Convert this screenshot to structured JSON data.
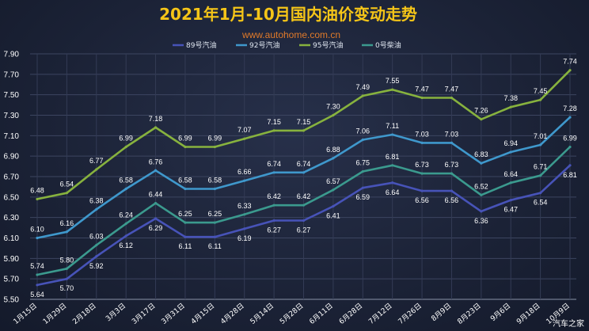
{
  "chart_data": {
    "type": "line",
    "title": "2021年1月-10月国内油价变动走势",
    "subtitle": "www.autohome.com.cn",
    "watermark": "汽车之家",
    "categories": [
      "1月15日",
      "1月29日",
      "2月18日",
      "3月3日",
      "3月17日",
      "3月31日",
      "4月15日",
      "4月28日",
      "5月14日",
      "5月28日",
      "6月11日",
      "6月28日",
      "7月12日",
      "7月26日",
      "8月9日",
      "8月23日",
      "9月6日",
      "9月18日",
      "10月9日"
    ],
    "ylim": [
      5.5,
      7.9
    ],
    "yticks": [
      "5.50",
      "5.70",
      "5.90",
      "6.10",
      "6.30",
      "6.50",
      "6.70",
      "6.90",
      "7.10",
      "7.30",
      "7.50",
      "7.70",
      "7.90"
    ],
    "grid": true,
    "legend_position": "top-center",
    "series": [
      {
        "name": "89号汽油",
        "color": "#4753b8",
        "label_pos": "below",
        "values": [
          5.64,
          5.7,
          5.92,
          6.12,
          6.29,
          6.11,
          6.11,
          6.19,
          6.27,
          6.27,
          6.41,
          6.59,
          6.64,
          6.56,
          6.56,
          6.36,
          6.47,
          6.54,
          6.81
        ],
        "labels": [
          "5.64",
          "5.70",
          "5.92",
          "6.12",
          "6.29",
          "6.11",
          "6.11",
          "6.19",
          "6.27",
          "6.27",
          "6.41",
          "6.59",
          "6.64",
          "6.56",
          "6.56",
          "6.36",
          "6.47",
          "6.54",
          "6.81"
        ]
      },
      {
        "name": "92号汽油",
        "color": "#3f98cc",
        "label_pos": "above",
        "values": [
          6.1,
          6.16,
          6.38,
          6.58,
          6.76,
          6.58,
          6.58,
          6.66,
          6.74,
          6.74,
          6.88,
          7.06,
          7.11,
          7.03,
          7.03,
          6.83,
          6.94,
          7.01,
          7.28
        ],
        "labels": [
          "6.10",
          "6.16",
          "6.38",
          "6.58",
          "6.76",
          "6.58",
          "6.58",
          "6.66",
          "6.74",
          "6.74",
          "6.88",
          "7.06",
          "7.11",
          "7.03",
          "7.03",
          "6.83",
          "6.94",
          "7.01",
          "7.28"
        ]
      },
      {
        "name": "95号汽油",
        "color": "#87b23e",
        "label_pos": "above",
        "values": [
          6.48,
          6.54,
          6.77,
          6.99,
          7.18,
          6.99,
          6.99,
          7.07,
          7.15,
          7.15,
          7.3,
          7.49,
          7.55,
          7.47,
          7.47,
          7.26,
          7.38,
          7.45,
          7.74
        ],
        "labels": [
          "6.48",
          "6.54",
          "6.77",
          "6.99",
          "7.18",
          "6.99",
          "6.99",
          "7.07",
          "7.15",
          "7.15",
          "7.30",
          "7.49",
          "7.55",
          "7.47",
          "7.47",
          "7.26",
          "7.38",
          "7.45",
          "7.74"
        ]
      },
      {
        "name": "0号柴油",
        "color": "#3b9a8e",
        "label_pos": "above",
        "values": [
          5.74,
          5.8,
          6.03,
          6.24,
          6.44,
          6.25,
          6.25,
          6.33,
          6.42,
          6.42,
          6.57,
          6.75,
          6.81,
          6.73,
          6.73,
          6.52,
          6.64,
          6.71,
          6.99
        ],
        "labels": [
          "5.74",
          "5.80",
          "6.03",
          "6.24",
          "6.44",
          "6.25",
          "6.25",
          "6.33",
          "6.42",
          "6.42",
          "6.57",
          "6.75",
          "6.81",
          "6.73",
          "6.73",
          "6.52",
          "6.64",
          "6.71",
          "6.99"
        ]
      }
    ]
  }
}
